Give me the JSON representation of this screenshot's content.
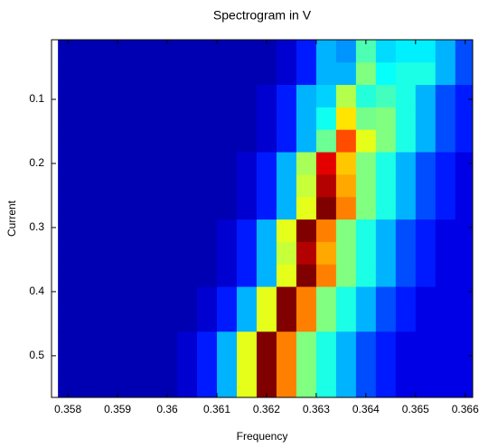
{
  "chart_data": {
    "type": "heatmap",
    "title": "Spectrogram in V",
    "x_label": "Frequency",
    "y_label": "Current",
    "colormap": "jet",
    "clim": [
      0,
      1
    ],
    "y_reversed": true,
    "xlim": [
      0.35767,
      0.36615
    ],
    "ylim": [
      0.007,
      0.565
    ],
    "xticks": [
      0.358,
      0.359,
      0.36,
      0.361,
      0.362,
      0.363,
      0.364,
      0.365,
      0.366
    ],
    "yticks": [
      0.1,
      0.2,
      0.3,
      0.4,
      0.5
    ],
    "x": [
      0.358,
      0.3584,
      0.3588,
      0.3592,
      0.3596,
      0.36,
      0.3604,
      0.3608,
      0.3612,
      0.3616,
      0.362,
      0.3624,
      0.3628,
      0.3632,
      0.3636,
      0.364,
      0.3644,
      0.3648,
      0.3652,
      0.3656,
      0.366
    ],
    "y": [
      0.025,
      0.06,
      0.095,
      0.13,
      0.165,
      0.2,
      0.235,
      0.27,
      0.305,
      0.34,
      0.375,
      0.41,
      0.445,
      0.48,
      0.515,
      0.55
    ],
    "values": [
      [
        0.05,
        0.05,
        0.05,
        0.05,
        0.05,
        0.05,
        0.05,
        0.05,
        0.05,
        0.05,
        0.05,
        0.08,
        0.15,
        0.3,
        0.27,
        0.45,
        0.34,
        0.36,
        0.36,
        0.3,
        0.2
      ],
      [
        0.05,
        0.05,
        0.05,
        0.05,
        0.05,
        0.05,
        0.05,
        0.05,
        0.05,
        0.05,
        0.05,
        0.08,
        0.15,
        0.3,
        0.3,
        0.5,
        0.38,
        0.4,
        0.4,
        0.3,
        0.2
      ],
      [
        0.05,
        0.05,
        0.05,
        0.05,
        0.05,
        0.05,
        0.05,
        0.05,
        0.05,
        0.05,
        0.08,
        0.15,
        0.3,
        0.33,
        0.55,
        0.41,
        0.44,
        0.4,
        0.3,
        0.2,
        0.15
      ],
      [
        0.05,
        0.05,
        0.05,
        0.05,
        0.05,
        0.05,
        0.05,
        0.05,
        0.05,
        0.05,
        0.08,
        0.15,
        0.3,
        0.39,
        0.65,
        0.49,
        0.5,
        0.4,
        0.3,
        0.2,
        0.15
      ],
      [
        0.05,
        0.05,
        0.05,
        0.05,
        0.05,
        0.05,
        0.05,
        0.05,
        0.05,
        0.05,
        0.08,
        0.15,
        0.3,
        0.48,
        0.8,
        0.6,
        0.5,
        0.4,
        0.3,
        0.2,
        0.15
      ],
      [
        0.05,
        0.05,
        0.05,
        0.05,
        0.05,
        0.05,
        0.05,
        0.05,
        0.05,
        0.08,
        0.15,
        0.3,
        0.54,
        0.9,
        0.68,
        0.5,
        0.4,
        0.3,
        0.2,
        0.15,
        0.1
      ],
      [
        0.05,
        0.05,
        0.05,
        0.05,
        0.05,
        0.05,
        0.05,
        0.05,
        0.05,
        0.08,
        0.15,
        0.3,
        0.57,
        0.95,
        0.71,
        0.5,
        0.4,
        0.3,
        0.2,
        0.15,
        0.1
      ],
      [
        0.05,
        0.05,
        0.05,
        0.05,
        0.05,
        0.05,
        0.05,
        0.05,
        0.05,
        0.08,
        0.15,
        0.3,
        0.6,
        1,
        0.75,
        0.5,
        0.4,
        0.3,
        0.2,
        0.15,
        0.1
      ],
      [
        0.05,
        0.05,
        0.05,
        0.05,
        0.05,
        0.05,
        0.05,
        0.05,
        0.08,
        0.15,
        0.3,
        0.6,
        1,
        0.75,
        0.5,
        0.4,
        0.3,
        0.2,
        0.15,
        0.1,
        0.1
      ],
      [
        0.05,
        0.05,
        0.05,
        0.05,
        0.05,
        0.05,
        0.05,
        0.05,
        0.08,
        0.15,
        0.3,
        0.57,
        0.95,
        0.71,
        0.5,
        0.4,
        0.3,
        0.2,
        0.15,
        0.1,
        0.1
      ],
      [
        0.05,
        0.05,
        0.05,
        0.05,
        0.05,
        0.05,
        0.05,
        0.05,
        0.08,
        0.15,
        0.3,
        0.6,
        1,
        0.75,
        0.5,
        0.4,
        0.3,
        0.2,
        0.15,
        0.1,
        0.1
      ],
      [
        0.05,
        0.05,
        0.05,
        0.05,
        0.05,
        0.05,
        0.05,
        0.08,
        0.15,
        0.3,
        0.6,
        1,
        0.75,
        0.5,
        0.4,
        0.3,
        0.2,
        0.15,
        0.1,
        0.1,
        0.1
      ],
      [
        0.05,
        0.05,
        0.05,
        0.05,
        0.05,
        0.05,
        0.05,
        0.08,
        0.15,
        0.3,
        0.6,
        1,
        0.75,
        0.5,
        0.4,
        0.3,
        0.2,
        0.15,
        0.1,
        0.1,
        0.1
      ],
      [
        0.05,
        0.05,
        0.05,
        0.05,
        0.05,
        0.05,
        0.08,
        0.15,
        0.3,
        0.6,
        1,
        0.75,
        0.5,
        0.4,
        0.3,
        0.2,
        0.15,
        0.1,
        0.1,
        0.1,
        0.1
      ],
      [
        0.05,
        0.05,
        0.05,
        0.05,
        0.05,
        0.05,
        0.08,
        0.15,
        0.3,
        0.6,
        1,
        0.75,
        0.5,
        0.4,
        0.3,
        0.2,
        0.15,
        0.1,
        0.1,
        0.1,
        0.1
      ],
      [
        0.05,
        0.05,
        0.05,
        0.05,
        0.05,
        0.05,
        0.08,
        0.15,
        0.3,
        0.6,
        1,
        0.75,
        0.5,
        0.4,
        0.3,
        0.2,
        0.15,
        0.1,
        0.1,
        0.1,
        0.1
      ]
    ]
  }
}
